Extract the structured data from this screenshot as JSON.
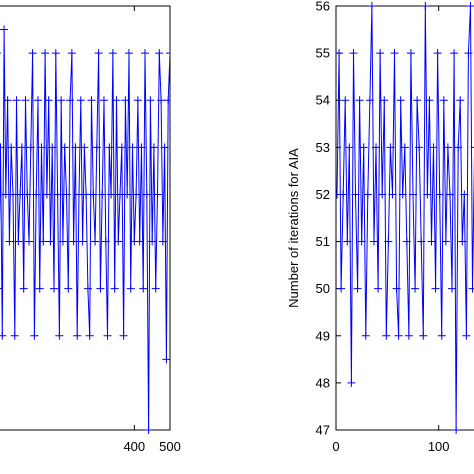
{
  "chart_data": [
    {
      "type": "line",
      "title": "",
      "xlabel": "",
      "ylabel": "",
      "xlim": [
        -10,
        500
      ],
      "ylim": [
        47,
        56
      ],
      "xticks": [
        400,
        500
      ],
      "yticks": [],
      "grid": false,
      "marker": "+",
      "line_color": "#0000ff",
      "series": [
        {
          "x": [
            0,
            5,
            10,
            15,
            20,
            25,
            30,
            35,
            40,
            45,
            50,
            55,
            60,
            65,
            70,
            75,
            80,
            85,
            90,
            95,
            100,
            105,
            110,
            115,
            120,
            125,
            130,
            135,
            140,
            145,
            150,
            155,
            160,
            165,
            170,
            175,
            180,
            185,
            190,
            195,
            200,
            205,
            210,
            215,
            220,
            225,
            230,
            235,
            240,
            245,
            250,
            255,
            260,
            265,
            270,
            275,
            280,
            285,
            290,
            295,
            300,
            305,
            310,
            315,
            320,
            325,
            330,
            335,
            340,
            345,
            350,
            355,
            360,
            365,
            370,
            375,
            380,
            385,
            390,
            395,
            400,
            405,
            410,
            415,
            420,
            425,
            430,
            435,
            440,
            445,
            450,
            455,
            460,
            465,
            470,
            475,
            480,
            485,
            490,
            495,
            500
          ],
          "y": [
            52,
            54,
            51,
            55,
            50,
            53,
            49,
            55.5,
            52,
            54,
            51,
            53,
            52,
            49,
            54,
            51,
            52,
            53,
            50,
            54,
            52,
            51,
            53,
            55,
            49,
            52,
            54,
            50,
            53,
            51,
            55,
            52,
            54,
            51,
            53,
            50,
            55,
            52,
            49,
            54,
            51,
            53,
            52,
            50,
            54,
            55,
            51,
            53,
            49,
            52,
            54,
            51,
            53,
            52,
            50,
            49,
            54,
            52,
            51,
            53,
            55,
            50,
            52,
            54,
            51,
            49,
            53,
            52,
            55,
            50,
            54,
            51,
            52,
            53,
            49,
            54,
            52,
            55,
            50,
            53,
            51,
            52,
            54,
            51,
            53,
            50,
            55,
            52,
            47,
            54,
            51,
            53,
            50,
            52,
            55,
            54,
            51,
            53,
            48.5,
            54,
            55
          ]
        }
      ]
    },
    {
      "type": "line",
      "title": "",
      "xlabel": "",
      "ylabel": "Number of iterations for AIA",
      "xlim": [
        0,
        150
      ],
      "ylim": [
        47,
        56
      ],
      "xticks": [
        0,
        100
      ],
      "yticks": [
        47,
        48,
        49,
        50,
        51,
        52,
        53,
        54,
        55,
        56
      ],
      "grid": false,
      "marker": "+",
      "line_color": "#0000ff",
      "series": [
        {
          "x": [
            1,
            3,
            5,
            7,
            9,
            11,
            13,
            15,
            17,
            19,
            21,
            23,
            25,
            27,
            29,
            31,
            33,
            35,
            37,
            39,
            41,
            43,
            45,
            47,
            49,
            51,
            53,
            55,
            57,
            59,
            61,
            63,
            65,
            67,
            69,
            71,
            73,
            75,
            77,
            79,
            81,
            83,
            85,
            87,
            89,
            91,
            93,
            95,
            97,
            99,
            101,
            103,
            105,
            107,
            109,
            111,
            113,
            115,
            117,
            119,
            121,
            123,
            125,
            127,
            129,
            131,
            133,
            135,
            137,
            139
          ],
          "y": [
            52,
            55,
            50,
            52,
            54,
            51,
            53,
            48,
            55,
            52,
            50,
            54,
            51,
            53,
            49,
            52,
            54,
            56,
            51,
            53,
            50,
            55,
            52,
            54,
            49,
            51,
            53,
            52,
            55,
            50,
            49,
            54,
            52,
            53,
            51,
            49,
            55,
            52,
            50,
            54,
            53,
            51,
            49,
            56,
            52,
            54,
            51,
            53,
            50,
            55,
            52,
            49,
            54,
            51,
            53,
            52,
            50,
            55,
            47,
            53,
            54,
            51,
            52,
            49,
            55,
            56,
            50,
            53,
            51,
            54
          ]
        }
      ]
    }
  ]
}
